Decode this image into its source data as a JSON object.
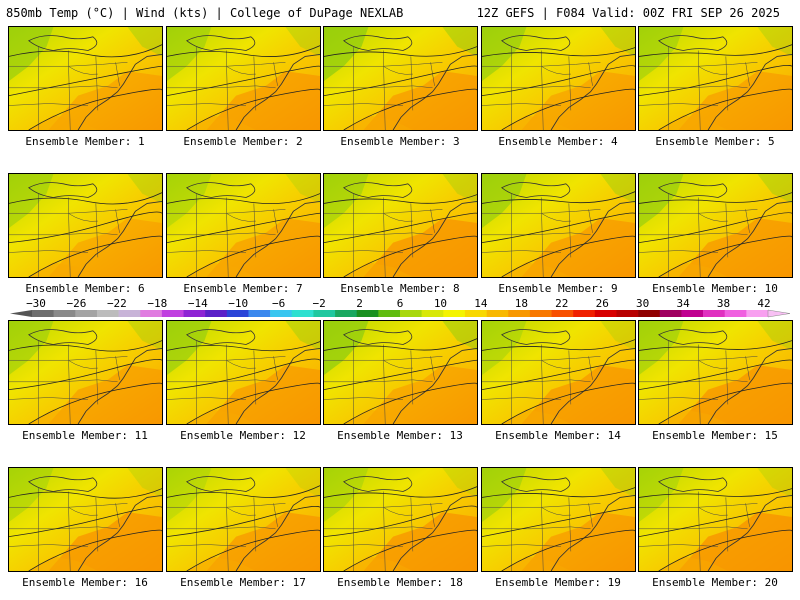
{
  "header": {
    "left": "850mb Temp (°C) | Wind (kts) | College of DuPage NEXLAB",
    "right": "12Z GEFS | F084 Valid: 00Z FRI SEP 26 2025"
  },
  "colorbar": {
    "labels": [
      "−30",
      "−26",
      "−22",
      "−18",
      "−14",
      "−10",
      "−6",
      "−2",
      "2",
      "6",
      "10",
      "14",
      "18",
      "22",
      "26",
      "30",
      "34",
      "38",
      "42"
    ],
    "colors": [
      "#6e6e6e",
      "#8a8a8a",
      "#a4a4a4",
      "#bcbcbc",
      "#c8b4d8",
      "#e07ce0",
      "#c040e0",
      "#8e24d4",
      "#5a20c8",
      "#2a44d8",
      "#3a88ee",
      "#38c6f0",
      "#2ee0d0",
      "#20c8a0",
      "#1aa860",
      "#1a9020",
      "#60bc10",
      "#a8d80c",
      "#d8e808",
      "#f4f400",
      "#f8d800",
      "#f8b800",
      "#f89800",
      "#f87800",
      "#f85000",
      "#f02000",
      "#d80000",
      "#b80000",
      "#900000",
      "#a00060",
      "#c00090",
      "#e030c0",
      "#f060e0",
      "#f8a0f0"
    ]
  },
  "members": [
    {
      "label": "Ensemble Member: 1"
    },
    {
      "label": "Ensemble Member: 2"
    },
    {
      "label": "Ensemble Member: 3"
    },
    {
      "label": "Ensemble Member: 4"
    },
    {
      "label": "Ensemble Member: 5"
    },
    {
      "label": "Ensemble Member: 6"
    },
    {
      "label": "Ensemble Member: 7"
    },
    {
      "label": "Ensemble Member: 8"
    },
    {
      "label": "Ensemble Member: 9"
    },
    {
      "label": "Ensemble Member: 10"
    },
    {
      "label": "Ensemble Member: 11"
    },
    {
      "label": "Ensemble Member: 12"
    },
    {
      "label": "Ensemble Member: 13"
    },
    {
      "label": "Ensemble Member: 14"
    },
    {
      "label": "Ensemble Member: 15"
    },
    {
      "label": "Ensemble Member: 16"
    },
    {
      "label": "Ensemble Member: 17"
    },
    {
      "label": "Ensemble Member: 18"
    },
    {
      "label": "Ensemble Member: 19"
    },
    {
      "label": "Ensemble Member: 20"
    }
  ]
}
